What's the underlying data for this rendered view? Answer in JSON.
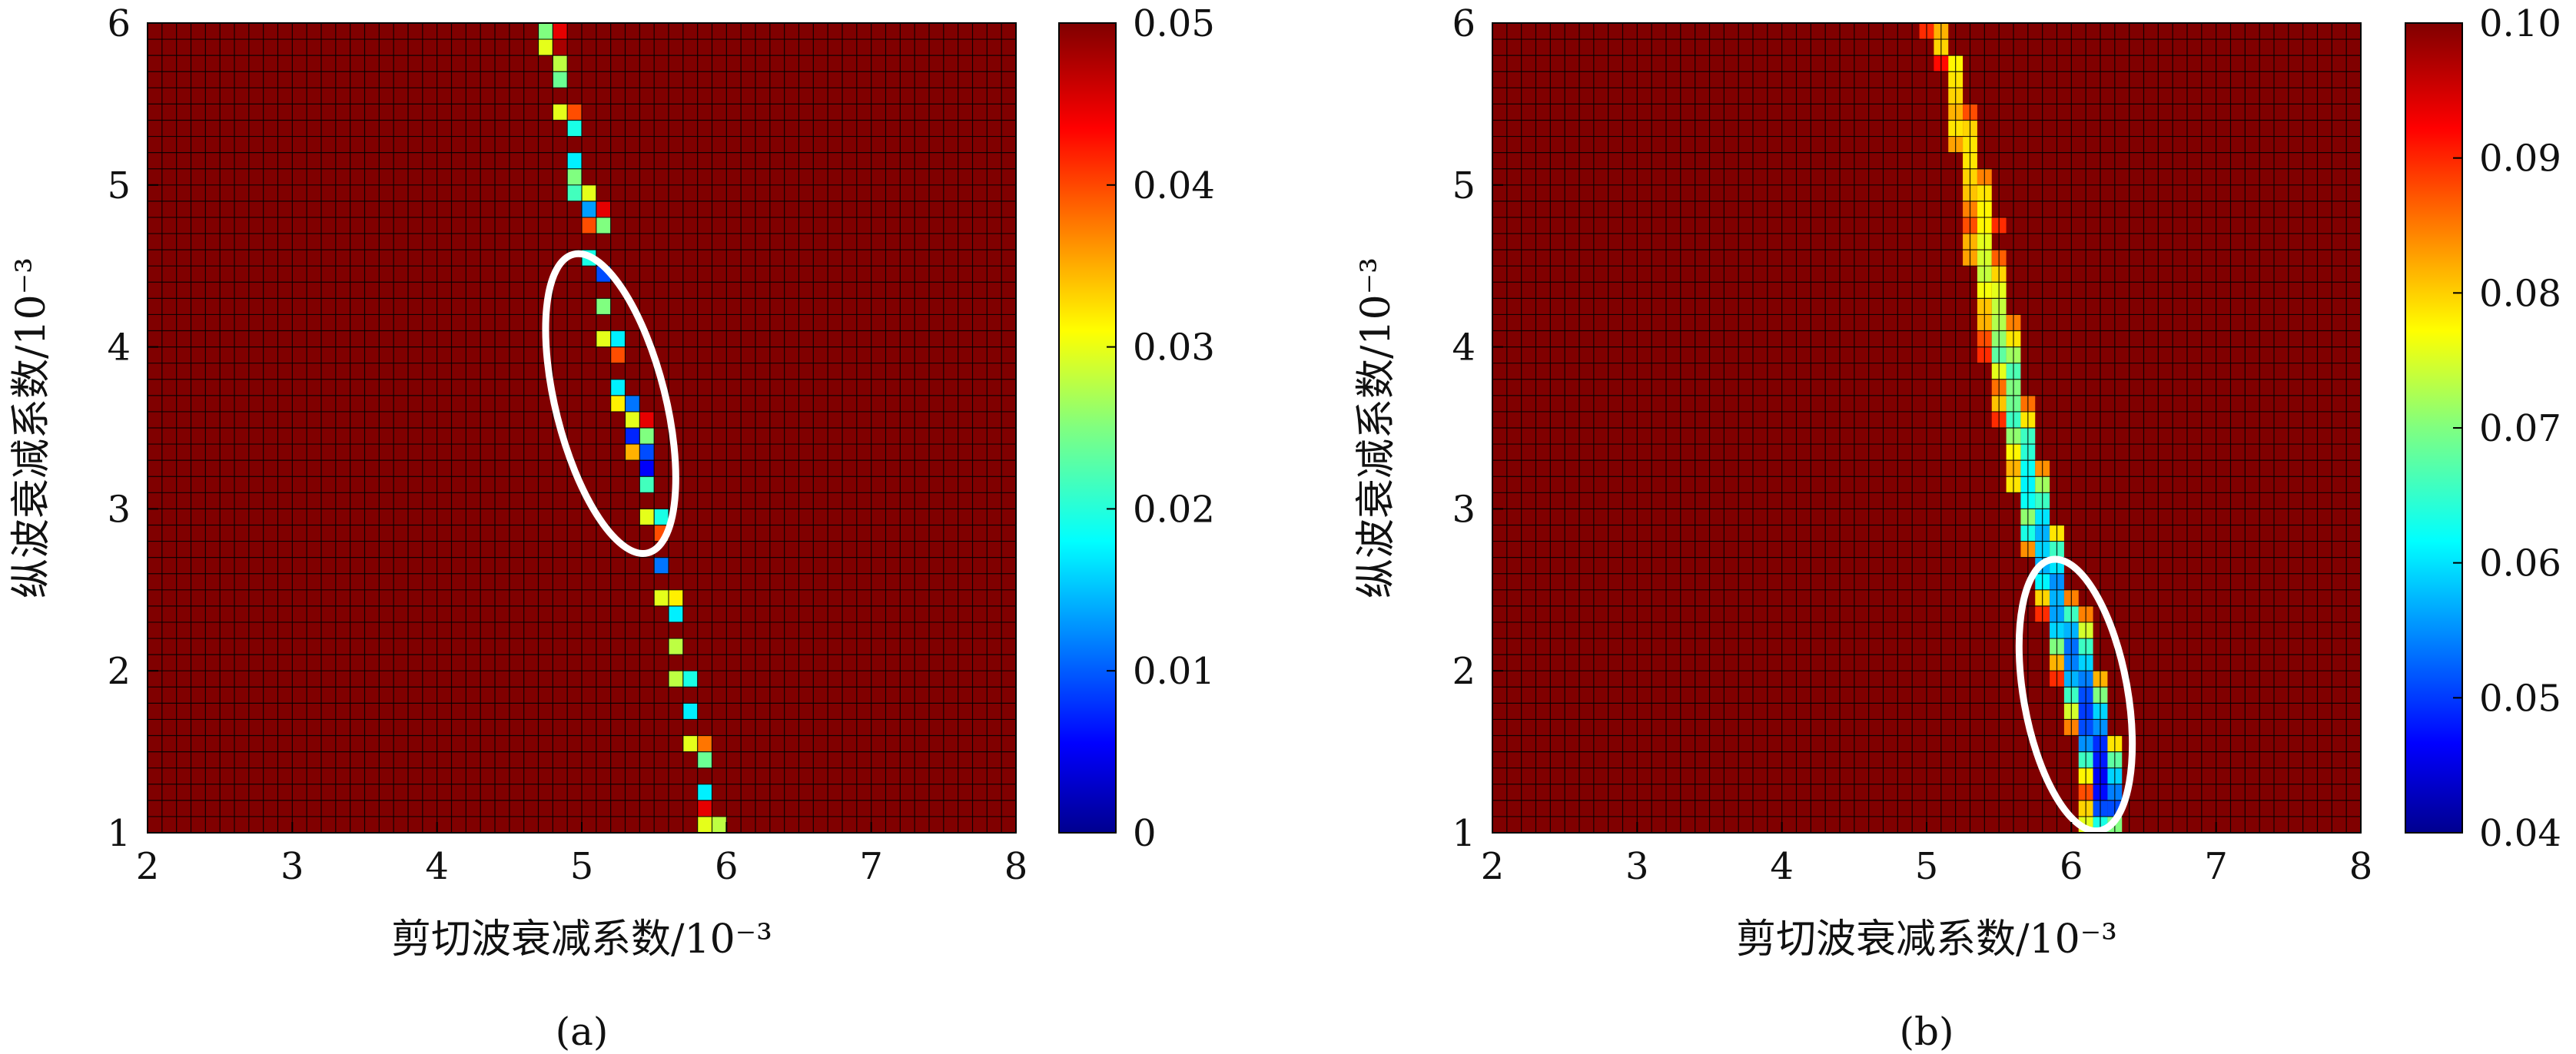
{
  "chart_data": [
    {
      "type": "heatmap",
      "panel_label": "(a)",
      "xlabel": "剪切波衰减系数/10⁻³",
      "ylabel": "纵波衰减系数/10⁻³",
      "x_ticks": [
        "2",
        "3",
        "4",
        "5",
        "6",
        "7",
        "8"
      ],
      "y_ticks": [
        "1",
        "2",
        "3",
        "4",
        "5",
        "6"
      ],
      "xlim": [
        2,
        8
      ],
      "ylim": [
        1,
        6
      ],
      "x_cells": 60,
      "y_cells": 50,
      "colorbar": {
        "range": [
          0,
          0.05
        ],
        "ticks": [
          "0",
          "0.01",
          "0.02",
          "0.03",
          "0.04",
          "0.05"
        ]
      },
      "background_value": 0.05,
      "colormap": "jet",
      "valley_cells": [
        {
          "x": 4.75,
          "y": 5.95,
          "v": 0.025
        },
        {
          "x": 4.85,
          "y": 5.95,
          "v": 0.045
        },
        {
          "x": 4.75,
          "y": 5.85,
          "v": 0.03
        },
        {
          "x": 4.85,
          "y": 5.85,
          "v": 0.048
        },
        {
          "x": 4.85,
          "y": 5.75,
          "v": 0.028
        },
        {
          "x": 4.85,
          "y": 5.65,
          "v": 0.024
        },
        {
          "x": 4.85,
          "y": 5.45,
          "v": 0.03
        },
        {
          "x": 4.95,
          "y": 5.45,
          "v": 0.04
        },
        {
          "x": 4.95,
          "y": 5.35,
          "v": 0.02
        },
        {
          "x": 4.95,
          "y": 5.15,
          "v": 0.018
        },
        {
          "x": 4.95,
          "y": 5.05,
          "v": 0.025
        },
        {
          "x": 4.95,
          "y": 4.95,
          "v": 0.022
        },
        {
          "x": 5.05,
          "y": 4.95,
          "v": 0.03
        },
        {
          "x": 5.05,
          "y": 4.85,
          "v": 0.014
        },
        {
          "x": 5.15,
          "y": 4.85,
          "v": 0.045
        },
        {
          "x": 5.05,
          "y": 4.75,
          "v": 0.04
        },
        {
          "x": 5.15,
          "y": 4.75,
          "v": 0.025
        },
        {
          "x": 5.05,
          "y": 4.55,
          "v": 0.02
        },
        {
          "x": 5.15,
          "y": 4.45,
          "v": 0.01
        },
        {
          "x": 5.15,
          "y": 4.25,
          "v": 0.025
        },
        {
          "x": 5.15,
          "y": 4.05,
          "v": 0.03
        },
        {
          "x": 5.25,
          "y": 4.05,
          "v": 0.018
        },
        {
          "x": 5.25,
          "y": 3.95,
          "v": 0.04
        },
        {
          "x": 5.25,
          "y": 3.75,
          "v": 0.018
        },
        {
          "x": 5.25,
          "y": 3.65,
          "v": 0.032
        },
        {
          "x": 5.35,
          "y": 3.65,
          "v": 0.012
        },
        {
          "x": 5.35,
          "y": 3.55,
          "v": 0.03
        },
        {
          "x": 5.45,
          "y": 3.55,
          "v": 0.045
        },
        {
          "x": 5.35,
          "y": 3.45,
          "v": 0.008
        },
        {
          "x": 5.45,
          "y": 3.45,
          "v": 0.025
        },
        {
          "x": 5.35,
          "y": 3.35,
          "v": 0.035
        },
        {
          "x": 5.45,
          "y": 3.35,
          "v": 0.01
        },
        {
          "x": 5.45,
          "y": 3.25,
          "v": 0.006
        },
        {
          "x": 5.45,
          "y": 3.15,
          "v": 0.022
        },
        {
          "x": 5.45,
          "y": 2.95,
          "v": 0.03
        },
        {
          "x": 5.55,
          "y": 2.95,
          "v": 0.02
        },
        {
          "x": 5.55,
          "y": 2.85,
          "v": 0.04
        },
        {
          "x": 5.55,
          "y": 2.65,
          "v": 0.012
        },
        {
          "x": 5.55,
          "y": 2.45,
          "v": 0.03
        },
        {
          "x": 5.65,
          "y": 2.45,
          "v": 0.032
        },
        {
          "x": 5.65,
          "y": 2.35,
          "v": 0.018
        },
        {
          "x": 5.65,
          "y": 2.15,
          "v": 0.028
        },
        {
          "x": 5.65,
          "y": 1.95,
          "v": 0.028
        },
        {
          "x": 5.75,
          "y": 1.95,
          "v": 0.02
        },
        {
          "x": 5.75,
          "y": 1.75,
          "v": 0.018
        },
        {
          "x": 5.75,
          "y": 1.55,
          "v": 0.03
        },
        {
          "x": 5.85,
          "y": 1.55,
          "v": 0.038
        },
        {
          "x": 5.85,
          "y": 1.45,
          "v": 0.024
        },
        {
          "x": 5.85,
          "y": 1.25,
          "v": 0.018
        },
        {
          "x": 5.85,
          "y": 1.15,
          "v": 0.045
        },
        {
          "x": 5.85,
          "y": 1.05,
          "v": 0.03
        },
        {
          "x": 5.95,
          "y": 1.05,
          "v": 0.028
        }
      ],
      "ellipse": {
        "cx": 5.2,
        "cy": 3.65,
        "rx": 0.38,
        "ry": 0.95,
        "angle": -14
      }
    },
    {
      "type": "heatmap",
      "panel_label": "(b)",
      "xlabel": "剪切波衰减系数/10⁻³",
      "ylabel": "纵波衰减系数/10⁻³",
      "x_ticks": [
        "2",
        "3",
        "4",
        "5",
        "6",
        "7",
        "8"
      ],
      "y_ticks": [
        "1",
        "2",
        "3",
        "4",
        "5",
        "6"
      ],
      "xlim": [
        2,
        8
      ],
      "ylim": [
        1,
        6
      ],
      "x_cells": 60,
      "y_cells": 50,
      "colorbar": {
        "range": [
          0.04,
          0.1
        ],
        "ticks": [
          "0.04",
          "0.05",
          "0.06",
          "0.07",
          "0.08",
          "0.09",
          "0.10"
        ]
      },
      "background_value": 0.1,
      "colormap": "jet",
      "valley_cells": [
        {
          "x": 5.0,
          "y": 5.95,
          "v": 0.09
        },
        {
          "x": 5.1,
          "y": 5.95,
          "v": 0.082
        },
        {
          "x": 5.1,
          "y": 5.85,
          "v": 0.08
        },
        {
          "x": 5.1,
          "y": 5.75,
          "v": 0.092
        },
        {
          "x": 5.2,
          "y": 5.75,
          "v": 0.078
        },
        {
          "x": 5.2,
          "y": 5.65,
          "v": 0.079
        },
        {
          "x": 5.2,
          "y": 5.55,
          "v": 0.08
        },
        {
          "x": 5.2,
          "y": 5.45,
          "v": 0.082
        },
        {
          "x": 5.3,
          "y": 5.45,
          "v": 0.088
        },
        {
          "x": 5.2,
          "y": 5.35,
          "v": 0.079
        },
        {
          "x": 5.3,
          "y": 5.35,
          "v": 0.08
        },
        {
          "x": 5.2,
          "y": 5.25,
          "v": 0.083
        },
        {
          "x": 5.3,
          "y": 5.25,
          "v": 0.079
        },
        {
          "x": 5.3,
          "y": 5.15,
          "v": 0.079
        },
        {
          "x": 5.3,
          "y": 5.05,
          "v": 0.08
        },
        {
          "x": 5.4,
          "y": 5.05,
          "v": 0.085
        },
        {
          "x": 5.3,
          "y": 4.95,
          "v": 0.081
        },
        {
          "x": 5.4,
          "y": 4.95,
          "v": 0.079
        },
        {
          "x": 5.3,
          "y": 4.85,
          "v": 0.085
        },
        {
          "x": 5.4,
          "y": 4.85,
          "v": 0.078
        },
        {
          "x": 5.3,
          "y": 4.75,
          "v": 0.088
        },
        {
          "x": 5.4,
          "y": 4.75,
          "v": 0.078
        },
        {
          "x": 5.5,
          "y": 4.75,
          "v": 0.09
        },
        {
          "x": 5.3,
          "y": 4.65,
          "v": 0.082
        },
        {
          "x": 5.4,
          "y": 4.65,
          "v": 0.076
        },
        {
          "x": 5.3,
          "y": 4.55,
          "v": 0.083
        },
        {
          "x": 5.4,
          "y": 4.55,
          "v": 0.075
        },
        {
          "x": 5.5,
          "y": 4.55,
          "v": 0.087
        },
        {
          "x": 5.4,
          "y": 4.45,
          "v": 0.074
        },
        {
          "x": 5.5,
          "y": 4.45,
          "v": 0.08
        },
        {
          "x": 5.4,
          "y": 4.35,
          "v": 0.077
        },
        {
          "x": 5.5,
          "y": 4.35,
          "v": 0.076
        },
        {
          "x": 5.4,
          "y": 4.25,
          "v": 0.081
        },
        {
          "x": 5.5,
          "y": 4.25,
          "v": 0.074
        },
        {
          "x": 5.4,
          "y": 4.15,
          "v": 0.082
        },
        {
          "x": 5.5,
          "y": 4.15,
          "v": 0.073
        },
        {
          "x": 5.6,
          "y": 4.15,
          "v": 0.085
        },
        {
          "x": 5.4,
          "y": 4.05,
          "v": 0.088
        },
        {
          "x": 5.5,
          "y": 4.05,
          "v": 0.071
        },
        {
          "x": 5.6,
          "y": 4.05,
          "v": 0.079
        },
        {
          "x": 5.4,
          "y": 3.95,
          "v": 0.09
        },
        {
          "x": 5.5,
          "y": 3.95,
          "v": 0.068
        },
        {
          "x": 5.6,
          "y": 3.95,
          "v": 0.072
        },
        {
          "x": 5.5,
          "y": 3.85,
          "v": 0.076
        },
        {
          "x": 5.6,
          "y": 3.85,
          "v": 0.067
        },
        {
          "x": 5.5,
          "y": 3.75,
          "v": 0.086
        },
        {
          "x": 5.6,
          "y": 3.75,
          "v": 0.07
        },
        {
          "x": 5.5,
          "y": 3.65,
          "v": 0.081
        },
        {
          "x": 5.6,
          "y": 3.65,
          "v": 0.069
        },
        {
          "x": 5.7,
          "y": 3.65,
          "v": 0.086
        },
        {
          "x": 5.5,
          "y": 3.55,
          "v": 0.09
        },
        {
          "x": 5.6,
          "y": 3.55,
          "v": 0.066
        },
        {
          "x": 5.7,
          "y": 3.55,
          "v": 0.079
        },
        {
          "x": 5.6,
          "y": 3.45,
          "v": 0.071
        },
        {
          "x": 5.7,
          "y": 3.45,
          "v": 0.066
        },
        {
          "x": 5.6,
          "y": 3.35,
          "v": 0.078
        },
        {
          "x": 5.7,
          "y": 3.35,
          "v": 0.065
        },
        {
          "x": 5.6,
          "y": 3.25,
          "v": 0.082
        },
        {
          "x": 5.7,
          "y": 3.25,
          "v": 0.063
        },
        {
          "x": 5.8,
          "y": 3.25,
          "v": 0.084
        },
        {
          "x": 5.6,
          "y": 3.15,
          "v": 0.079
        },
        {
          "x": 5.7,
          "y": 3.15,
          "v": 0.062
        },
        {
          "x": 5.8,
          "y": 3.15,
          "v": 0.072
        },
        {
          "x": 5.7,
          "y": 3.05,
          "v": 0.063
        },
        {
          "x": 5.8,
          "y": 3.05,
          "v": 0.066
        },
        {
          "x": 5.7,
          "y": 2.95,
          "v": 0.071
        },
        {
          "x": 5.8,
          "y": 2.95,
          "v": 0.061
        },
        {
          "x": 5.7,
          "y": 2.85,
          "v": 0.064
        },
        {
          "x": 5.8,
          "y": 2.85,
          "v": 0.058
        },
        {
          "x": 5.9,
          "y": 2.85,
          "v": 0.079
        },
        {
          "x": 5.7,
          "y": 2.75,
          "v": 0.084
        },
        {
          "x": 5.8,
          "y": 2.75,
          "v": 0.06
        },
        {
          "x": 5.9,
          "y": 2.75,
          "v": 0.066
        },
        {
          "x": 5.8,
          "y": 2.65,
          "v": 0.058
        },
        {
          "x": 5.9,
          "y": 2.65,
          "v": 0.061
        },
        {
          "x": 5.8,
          "y": 2.55,
          "v": 0.062
        },
        {
          "x": 5.9,
          "y": 2.55,
          "v": 0.056
        },
        {
          "x": 5.8,
          "y": 2.45,
          "v": 0.08
        },
        {
          "x": 5.9,
          "y": 2.45,
          "v": 0.058
        },
        {
          "x": 6.0,
          "y": 2.45,
          "v": 0.085
        },
        {
          "x": 5.8,
          "y": 2.35,
          "v": 0.09
        },
        {
          "x": 5.9,
          "y": 2.35,
          "v": 0.057
        },
        {
          "x": 6.0,
          "y": 2.35,
          "v": 0.066
        },
        {
          "x": 6.1,
          "y": 2.35,
          "v": 0.085
        },
        {
          "x": 5.9,
          "y": 2.25,
          "v": 0.06
        },
        {
          "x": 6.0,
          "y": 2.25,
          "v": 0.058
        },
        {
          "x": 6.1,
          "y": 2.25,
          "v": 0.075
        },
        {
          "x": 5.9,
          "y": 2.15,
          "v": 0.07
        },
        {
          "x": 6.0,
          "y": 2.15,
          "v": 0.054
        },
        {
          "x": 6.1,
          "y": 2.15,
          "v": 0.066
        },
        {
          "x": 5.9,
          "y": 2.05,
          "v": 0.082
        },
        {
          "x": 6.0,
          "y": 2.05,
          "v": 0.055
        },
        {
          "x": 6.1,
          "y": 2.05,
          "v": 0.06
        },
        {
          "x": 5.9,
          "y": 1.95,
          "v": 0.09
        },
        {
          "x": 6.0,
          "y": 1.95,
          "v": 0.058
        },
        {
          "x": 6.1,
          "y": 1.95,
          "v": 0.055
        },
        {
          "x": 6.2,
          "y": 1.95,
          "v": 0.082
        },
        {
          "x": 6.0,
          "y": 1.85,
          "v": 0.066
        },
        {
          "x": 6.1,
          "y": 1.85,
          "v": 0.052
        },
        {
          "x": 6.2,
          "y": 1.85,
          "v": 0.07
        },
        {
          "x": 6.0,
          "y": 1.75,
          "v": 0.075
        },
        {
          "x": 6.1,
          "y": 1.75,
          "v": 0.051
        },
        {
          "x": 6.2,
          "y": 1.75,
          "v": 0.06
        },
        {
          "x": 6.0,
          "y": 1.65,
          "v": 0.085
        },
        {
          "x": 6.1,
          "y": 1.65,
          "v": 0.052
        },
        {
          "x": 6.2,
          "y": 1.65,
          "v": 0.056
        },
        {
          "x": 6.1,
          "y": 1.55,
          "v": 0.056
        },
        {
          "x": 6.2,
          "y": 1.55,
          "v": 0.05
        },
        {
          "x": 6.3,
          "y": 1.55,
          "v": 0.079
        },
        {
          "x": 6.1,
          "y": 1.45,
          "v": 0.066
        },
        {
          "x": 6.2,
          "y": 1.45,
          "v": 0.049
        },
        {
          "x": 6.3,
          "y": 1.45,
          "v": 0.068
        },
        {
          "x": 6.1,
          "y": 1.35,
          "v": 0.078
        },
        {
          "x": 6.2,
          "y": 1.35,
          "v": 0.047
        },
        {
          "x": 6.3,
          "y": 1.35,
          "v": 0.06
        },
        {
          "x": 6.1,
          "y": 1.25,
          "v": 0.088
        },
        {
          "x": 6.2,
          "y": 1.25,
          "v": 0.048
        },
        {
          "x": 6.3,
          "y": 1.25,
          "v": 0.055
        },
        {
          "x": 6.1,
          "y": 1.15,
          "v": 0.08
        },
        {
          "x": 6.2,
          "y": 1.15,
          "v": 0.052
        },
        {
          "x": 6.3,
          "y": 1.15,
          "v": 0.052
        },
        {
          "x": 6.1,
          "y": 1.05,
          "v": 0.076
        },
        {
          "x": 6.2,
          "y": 1.05,
          "v": 0.064
        },
        {
          "x": 6.3,
          "y": 1.05,
          "v": 0.07
        }
      ],
      "ellipse": {
        "cx": 6.03,
        "cy": 1.85,
        "rx": 0.36,
        "ry": 0.85,
        "angle": -10
      }
    }
  ]
}
